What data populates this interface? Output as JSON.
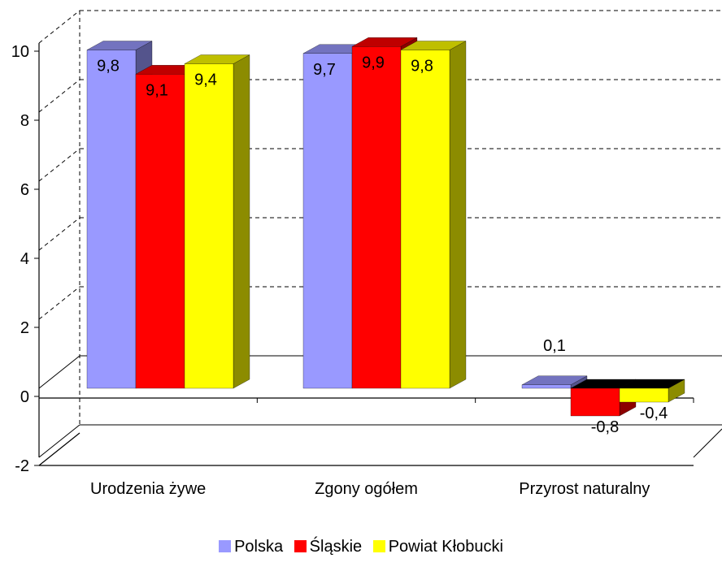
{
  "chart_data": {
    "type": "bar",
    "categories": [
      "Urodzenia żywe",
      "Zgony ogółem",
      "Przyrost naturalny"
    ],
    "series": [
      {
        "name": "Polska",
        "values": [
          9.8,
          9.7,
          0.1
        ],
        "labels": [
          "9,8",
          "9,7",
          "0,1"
        ],
        "color": "#9999ff"
      },
      {
        "name": "Śląskie",
        "values": [
          9.1,
          9.9,
          -0.8
        ],
        "labels": [
          "9,1",
          "9,9",
          "-0,8"
        ],
        "color": "#ff0000"
      },
      {
        "name": "Powiat Kłobucki",
        "values": [
          9.4,
          9.8,
          -0.4
        ],
        "labels": [
          "9,4",
          "9,8",
          "-0,4"
        ],
        "color": "#ffff00"
      }
    ],
    "y_ticks": [
      "-2",
      "0",
      "2",
      "4",
      "6",
      "8",
      "10"
    ],
    "ylim": [
      -2,
      10
    ],
    "grid": "dashed horizontal",
    "legend_position": "bottom"
  }
}
